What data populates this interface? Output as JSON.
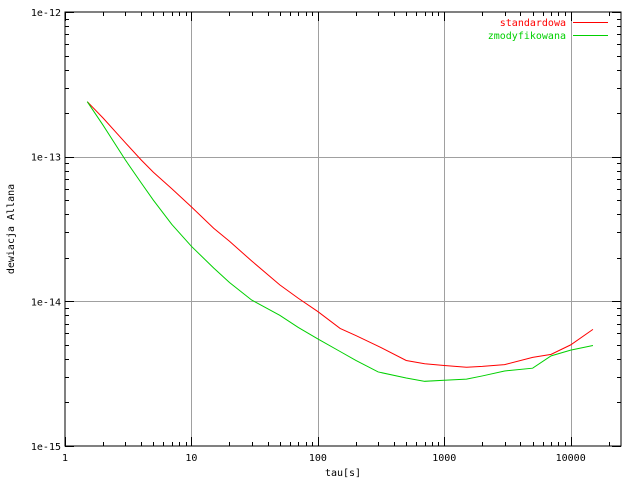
{
  "colors": {
    "background": "#ffffff",
    "grid": "#a0a0a0",
    "axis": "#000000"
  },
  "chart_data": {
    "type": "line",
    "title": "",
    "xlabel": "tau[s]",
    "ylabel": "dewiacja Allana",
    "x_scale": "log",
    "y_scale": "log",
    "xlim": [
      1,
      25000
    ],
    "ylim": [
      1e-15,
      1e-12
    ],
    "grid": true,
    "legend_position": "top-right",
    "x_ticks": [
      {
        "value": 1,
        "label": "1"
      },
      {
        "value": 10,
        "label": "10"
      },
      {
        "value": 100,
        "label": "100"
      },
      {
        "value": 1000,
        "label": "1000"
      },
      {
        "value": 10000,
        "label": "10000"
      }
    ],
    "y_ticks": [
      {
        "value": 1e-15,
        "label": "1e-15"
      },
      {
        "value": 1e-14,
        "label": "1e-14"
      },
      {
        "value": 1e-13,
        "label": "1e-13"
      },
      {
        "value": 1e-12,
        "label": "1e-12"
      }
    ],
    "series": [
      {
        "name": "standardowa",
        "color": "#ff0000",
        "x": [
          1.5,
          2,
          3,
          4,
          5,
          7,
          10,
          15,
          20,
          30,
          50,
          70,
          100,
          150,
          200,
          300,
          500,
          700,
          1000,
          1500,
          2000,
          3000,
          5000,
          7000,
          10000,
          15000
        ],
        "y": [
          2.4e-13,
          1.85e-13,
          1.25e-13,
          9.5e-14,
          7.8e-14,
          6e-14,
          4.5e-14,
          3.2e-14,
          2.6e-14,
          1.9e-14,
          1.3e-14,
          1.05e-14,
          8.5e-15,
          6.5e-15,
          5.8e-15,
          4.9e-15,
          3.9e-15,
          3.7e-15,
          3.6e-15,
          3.5e-15,
          3.55e-15,
          3.65e-15,
          4.1e-15,
          4.3e-15,
          5e-15,
          6.4e-15
        ]
      },
      {
        "name": "zmodyfikowana",
        "color": "#00d000",
        "x": [
          1.5,
          2,
          3,
          4,
          5,
          7,
          10,
          15,
          20,
          30,
          50,
          70,
          100,
          150,
          200,
          300,
          500,
          700,
          1000,
          1500,
          2000,
          3000,
          5000,
          7000,
          10000,
          15000
        ],
        "y": [
          2.4e-13,
          1.65e-13,
          9.5e-14,
          6.6e-14,
          5e-14,
          3.4e-14,
          2.4e-14,
          1.7e-14,
          1.35e-14,
          1.02e-14,
          8e-15,
          6.6e-15,
          5.5e-15,
          4.5e-15,
          3.9e-15,
          3.25e-15,
          2.95e-15,
          2.8e-15,
          2.85e-15,
          2.9e-15,
          3.05e-15,
          3.3e-15,
          3.45e-15,
          4.2e-15,
          4.6e-15,
          4.95e-15
        ]
      }
    ]
  }
}
